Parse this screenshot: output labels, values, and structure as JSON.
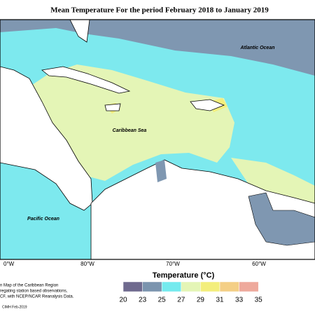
{
  "title": "Mean Temperature For the period February 2018 to January 2019",
  "labels": {
    "atlantic": "Atlantic Ocean",
    "caribbean": "Caribbean Sea",
    "pacific": "Pacific Ocean"
  },
  "longitudes": [
    "0°W",
    "80°W",
    "70°W",
    "60°W"
  ],
  "legend": {
    "title": "Temperature (°C)",
    "ticks": [
      20,
      23,
      25,
      27,
      29,
      31,
      33,
      35
    ],
    "colors": [
      "#6f6a8e",
      "#7b94ae",
      "#74eaee",
      "#e4f5b6",
      "#f3ee7c",
      "#f4cf86",
      "#eea99c"
    ]
  },
  "caption": [
    "n Map of the Caribbean Region",
    "regating station based observations,",
    "CF, with NCEP/NCAR Reanalysis Data.",
    "CIMH Feb-2019"
  ]
}
